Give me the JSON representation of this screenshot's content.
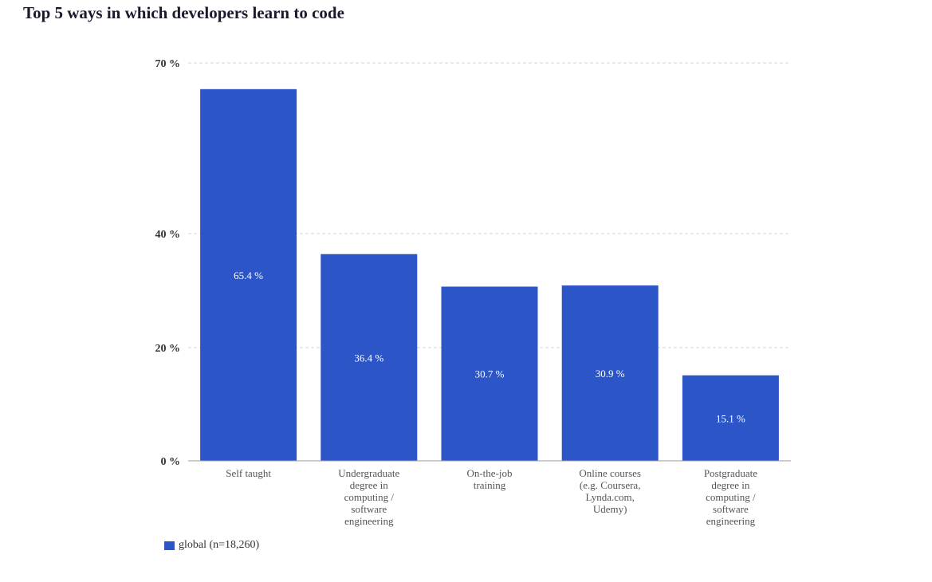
{
  "chart_data": {
    "type": "bar",
    "title": "Top 5 ways in which developers learn to code",
    "categories": [
      [
        "Self taught"
      ],
      [
        "Undergraduate",
        "degree in",
        "computing /",
        "software",
        "engineering"
      ],
      [
        "On-the-job",
        "training"
      ],
      [
        "Online courses",
        "(e.g. Coursera,",
        "Lynda.com,",
        "Udemy)"
      ],
      [
        "Postgraduate",
        "degree in",
        "computing /",
        "software",
        "engineering"
      ]
    ],
    "series": [
      {
        "name": "global (n=18,260)",
        "values": [
          65.4,
          36.4,
          30.7,
          30.9,
          15.1
        ],
        "value_labels": [
          "65.4 %",
          "36.4 %",
          "30.7 %",
          "30.9 %",
          "15.1 %"
        ]
      }
    ],
    "y_ticks": [
      {
        "value": 0,
        "label": "0 %"
      },
      {
        "value": 20,
        "label": "20 %"
      },
      {
        "value": 40,
        "label": "40 %"
      },
      {
        "value": 70,
        "label": "70 %"
      }
    ],
    "ylim": [
      0,
      70
    ],
    "xlabel": "",
    "ylabel": "",
    "grid": true,
    "legend_position": "bottom-left",
    "colors": {
      "bar": "#2c56c8",
      "grid": "#d0d4da",
      "axis": "#999999",
      "tick_text": "#333333",
      "category_text": "#555555",
      "value_text": "#ffffff"
    }
  }
}
